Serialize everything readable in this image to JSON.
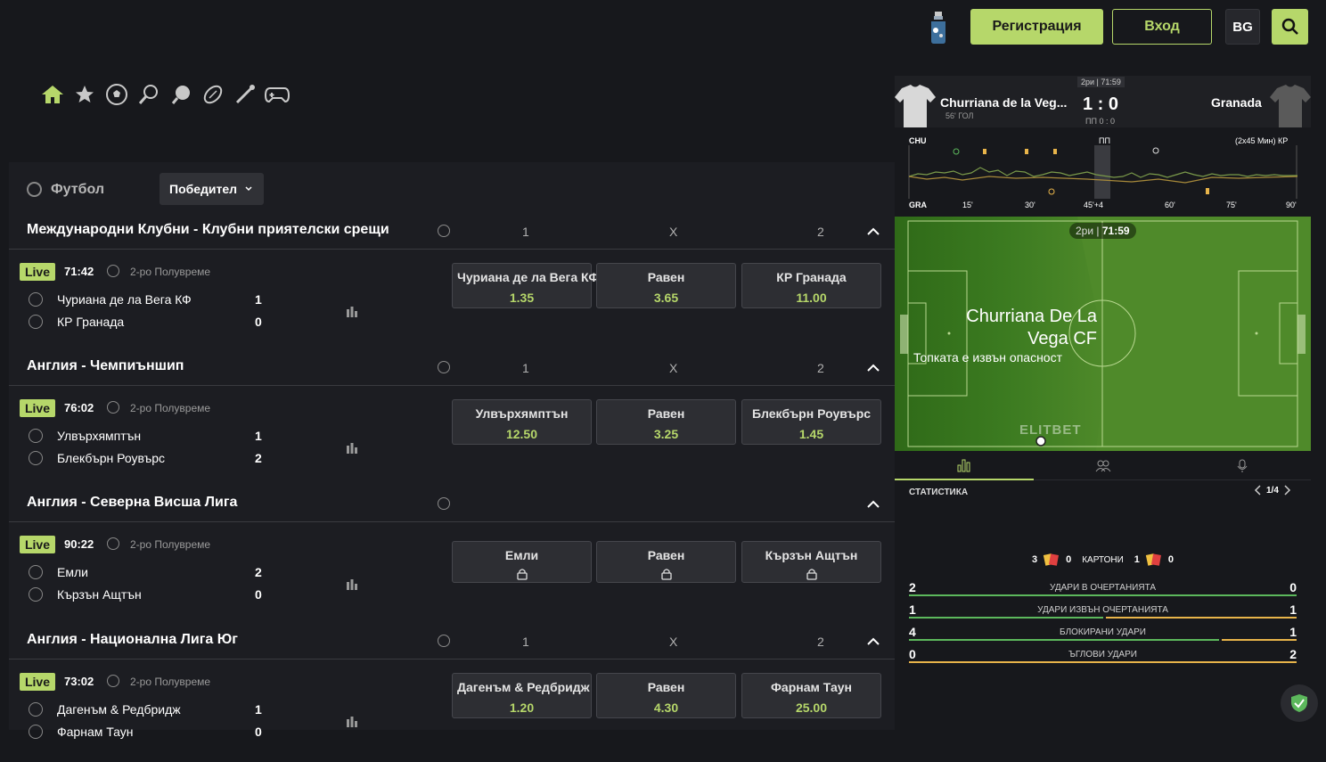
{
  "header": {
    "register_label": "Регистрация",
    "login_label": "Вход",
    "language": "BG"
  },
  "sport_nav": [
    "home-icon",
    "star-icon",
    "soccer-icon",
    "tennis-icon",
    "table-tennis-icon",
    "rugby-icon",
    "badminton-icon",
    "esports-icon"
  ],
  "market_bar": {
    "sport_label": "Футбол",
    "market_select": "Победител"
  },
  "leagues": [
    {
      "name": "Международни Клубни - Клубни приятелски срещи",
      "col1": "1",
      "colx": "X",
      "col2": "2",
      "match": {
        "live": "Live",
        "time": "71:42",
        "period": "2-ро Полувреме",
        "home": "Чуриана де ла Вега КФ",
        "away": "КР Гранада",
        "home_score": "1",
        "away_score": "0",
        "odds": [
          {
            "label": "Чуриана де ла Вега КФ",
            "value": "1.35"
          },
          {
            "label": "Равен",
            "value": "3.65"
          },
          {
            "label": "КР Гранада",
            "value": "11.00"
          }
        ]
      }
    },
    {
      "name": "Англия - Чемпиъншип",
      "col1": "1",
      "colx": "X",
      "col2": "2",
      "match": {
        "live": "Live",
        "time": "76:02",
        "period": "2-ро Полувреме",
        "home": "Улвърхямптън",
        "away": "Блекбърн Роувърс",
        "home_score": "1",
        "away_score": "2",
        "odds": [
          {
            "label": "Улвърхямптън",
            "value": "12.50"
          },
          {
            "label": "Равен",
            "value": "3.25"
          },
          {
            "label": "Блекбърн Роувърс",
            "value": "1.45"
          }
        ]
      }
    },
    {
      "name": "Англия - Северна Висша Лига",
      "col1": "",
      "colx": "",
      "col2": "",
      "match": {
        "live": "Live",
        "time": "90:22",
        "period": "2-ро Полувреме",
        "home": "Емли",
        "away": "Кързън Ащтън",
        "home_score": "2",
        "away_score": "0",
        "odds": [
          {
            "label": "Емли",
            "value": ""
          },
          {
            "label": "Равен",
            "value": ""
          },
          {
            "label": "Кързън Ащтън",
            "value": ""
          }
        ]
      }
    },
    {
      "name": "Англия - Национална Лига Юг",
      "col1": "1",
      "colx": "X",
      "col2": "2",
      "match": {
        "live": "Live",
        "time": "73:02",
        "period": "2-ро Полувреме",
        "home": "Дагенъм & Редбридж",
        "away": "Фарнам Таун",
        "home_score": "1",
        "away_score": "0",
        "odds": [
          {
            "label": "Дагенъм & Редбридж",
            "value": "1.20"
          },
          {
            "label": "Равен",
            "value": "4.30"
          },
          {
            "label": "Фарнам Таун",
            "value": "25.00"
          }
        ]
      }
    }
  ],
  "live_tracker": {
    "clock": "2ри | 71:59",
    "home": "Churriana de la Veg...",
    "home_sub": "56' ГОЛ",
    "score": "1 : 0",
    "ht": "ПП 0 : 0",
    "away": "Granada",
    "momentum": {
      "home_code": "CHU",
      "away_code": "GRA",
      "ht_label": "ПП",
      "duration": "(2x45 Мин) КР",
      "ticks": [
        "15'",
        "30'",
        "45'+4",
        "60'",
        "75'",
        "90'"
      ]
    },
    "pitch": {
      "clock_period": "2ри",
      "clock_time": "71:59",
      "team_line1": "Churriana De La",
      "team_line2": "Vega CF",
      "event": "Топката е извън опасност",
      "watermark": "ELITBET"
    },
    "stats_title": "СТАТИСТИКА",
    "page": "1/4",
    "cards": {
      "home_yellow": "3",
      "home_red": "0",
      "label": "КАРТОНИ",
      "away_yellow": "1",
      "away_red": "0"
    },
    "stats": [
      {
        "label": "УДАРИ В ОЧЕРТАНИЯТА",
        "home": "2",
        "away": "0",
        "home_share": 1.0
      },
      {
        "label": "УДАРИ ИЗВЪН ОЧЕРТАНИЯТА",
        "home": "1",
        "away": "1",
        "home_share": 0.5
      },
      {
        "label": "БЛОКИРАНИ УДАРИ",
        "home": "4",
        "away": "1",
        "home_share": 0.8
      },
      {
        "label": "ЪГЛОВИ УДАРИ",
        "home": "0",
        "away": "2",
        "home_share": 0.0
      }
    ]
  },
  "colors": {
    "accent": "#b6d76a",
    "away_bar": "#e8b44a",
    "home_bar": "#5cb85c"
  }
}
